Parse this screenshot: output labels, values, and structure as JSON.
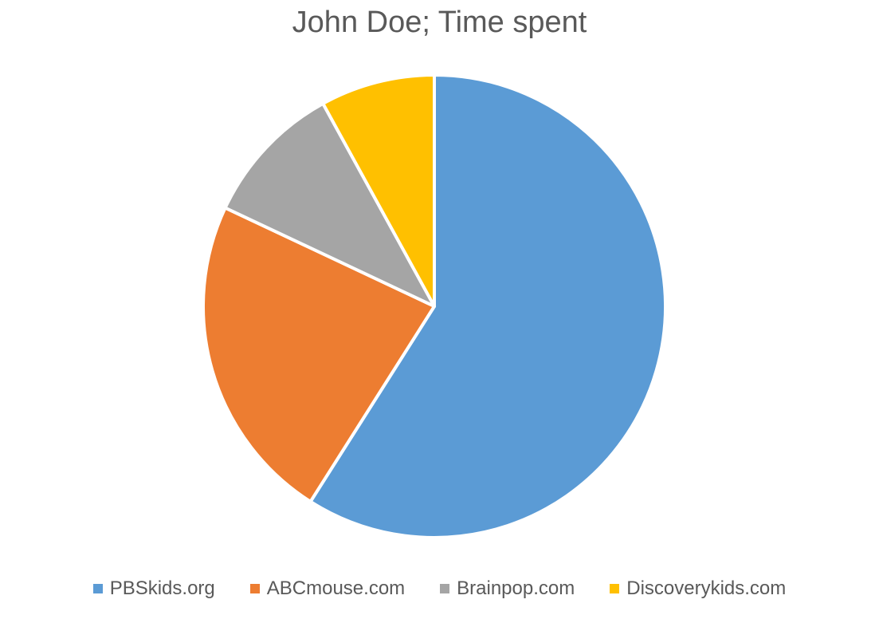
{
  "chart_data": {
    "type": "pie",
    "title": "John Doe; Time spent",
    "categories": [
      "PBSkids.org",
      "ABCmouse.com",
      "Brainpop.com",
      "Discoverykids.com"
    ],
    "values": [
      59,
      23,
      10,
      8
    ],
    "colors": [
      "#5B9BD5",
      "#ED7D31",
      "#A5A5A5",
      "#FFC000"
    ],
    "legend_position": "bottom",
    "start_angle": "top",
    "direction": "clockwise"
  }
}
